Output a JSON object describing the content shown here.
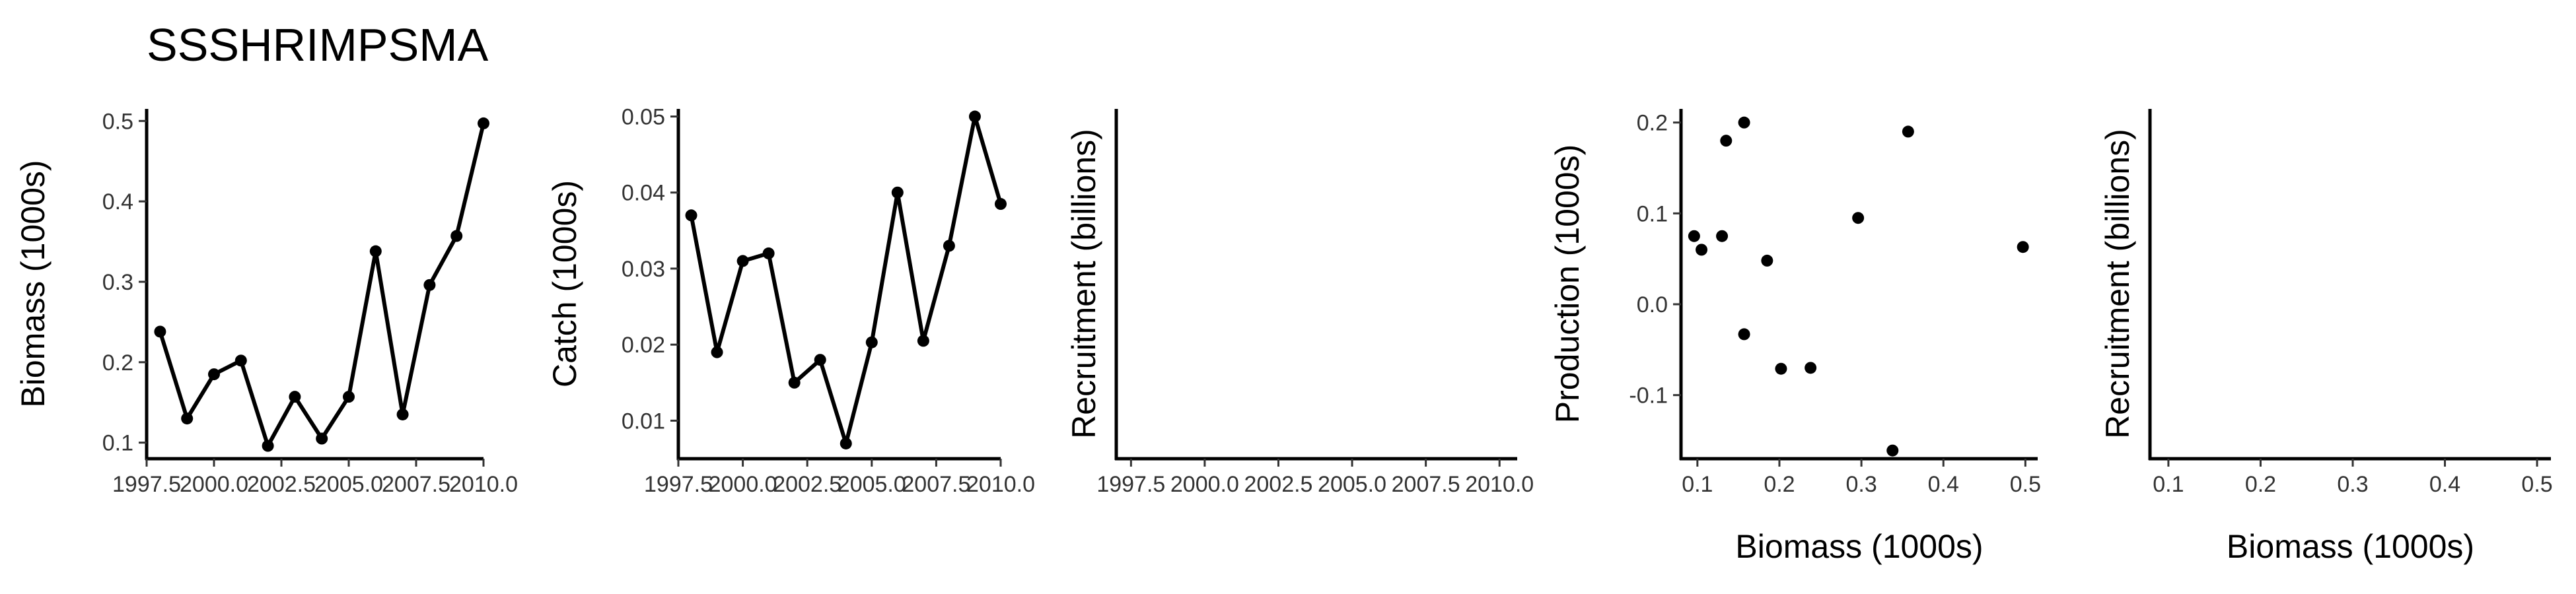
{
  "title": "SSSHRIMPSMA",
  "chart_data": [
    {
      "type": "line",
      "xlabel": "",
      "ylabel": "Biomass (1000s)",
      "xlim": [
        1997.5,
        2010.0
      ],
      "ylim": [
        0.08,
        0.515
      ],
      "xticks": [
        1997.5,
        2000.0,
        2002.5,
        2005.0,
        2007.5,
        2010.0
      ],
      "xtick_labels": [
        "1997.5",
        "2000.0",
        "2002.5",
        "2005.0",
        "2007.5",
        "2010.0"
      ],
      "yticks": [
        0.1,
        0.2,
        0.3,
        0.4,
        0.5
      ],
      "ytick_labels": [
        "0.1",
        "0.2",
        "0.3",
        "0.4",
        "0.5"
      ],
      "x": [
        1998,
        1999,
        2000,
        2001,
        2002,
        2003,
        2004,
        2005,
        2006,
        2007,
        2008,
        2009,
        2010
      ],
      "y": [
        0.238,
        0.13,
        0.185,
        0.202,
        0.096,
        0.157,
        0.105,
        0.157,
        0.338,
        0.135,
        0.296,
        0.357,
        0.497
      ]
    },
    {
      "type": "line",
      "xlabel": "",
      "ylabel": "Catch (1000s)",
      "xlim": [
        1997.5,
        2010.0
      ],
      "ylim": [
        0.005,
        0.051
      ],
      "xticks": [
        1997.5,
        2000.0,
        2002.5,
        2005.0,
        2007.5,
        2010.0
      ],
      "xtick_labels": [
        "1997.5",
        "2000.0",
        "2002.5",
        "2005.0",
        "2007.5",
        "2010.0"
      ],
      "yticks": [
        0.01,
        0.02,
        0.03,
        0.04,
        0.05
      ],
      "ytick_labels": [
        "0.01",
        "0.02",
        "0.03",
        "0.04",
        "0.05"
      ],
      "x": [
        1998,
        1999,
        2000,
        2001,
        2002,
        2003,
        2004,
        2005,
        2006,
        2007,
        2008,
        2009,
        2010
      ],
      "y": [
        0.037,
        0.019,
        0.031,
        0.032,
        0.015,
        0.018,
        0.007,
        0.0203,
        0.04,
        0.0205,
        0.033,
        0.05,
        0.0385
      ]
    },
    {
      "type": "line",
      "xlabel": "",
      "ylabel": "Recruitment (billions)",
      "xlim": [
        1997.0,
        2010.6
      ],
      "xticks": [
        1997.5,
        2000.0,
        2002.5,
        2005.0,
        2007.5,
        2010.0
      ],
      "xtick_labels": [
        "1997.5",
        "2000.0",
        "2002.5",
        "2005.0",
        "2007.5",
        "2010.0"
      ],
      "yticks": [],
      "ytick_labels": [],
      "x": [],
      "y": []
    },
    {
      "type": "scatter",
      "xlabel": "Biomass (1000s)",
      "ylabel": "Production (1000s)",
      "xlim": [
        0.08,
        0.515
      ],
      "ylim": [
        -0.17,
        0.215
      ],
      "xticks": [
        0.1,
        0.2,
        0.3,
        0.4,
        0.5
      ],
      "xtick_labels": [
        "0.1",
        "0.2",
        "0.3",
        "0.4",
        "0.5"
      ],
      "yticks": [
        -0.1,
        0.0,
        0.1,
        0.2
      ],
      "ytick_labels": [
        "-0.1",
        "0.0",
        "0.1",
        "0.2"
      ],
      "x": [
        0.096,
        0.105,
        0.13,
        0.135,
        0.157,
        0.157,
        0.185,
        0.202,
        0.238,
        0.296,
        0.338,
        0.357,
        0.497
      ],
      "y": [
        0.075,
        0.06,
        0.075,
        0.18,
        0.2,
        -0.033,
        0.048,
        -0.071,
        -0.07,
        0.095,
        -0.161,
        0.19,
        0.063
      ]
    },
    {
      "type": "scatter",
      "xlabel": "Biomass (1000s)",
      "ylabel": "Recruitment (billions)",
      "xlim": [
        0.08,
        0.515
      ],
      "xticks": [
        0.1,
        0.2,
        0.3,
        0.4,
        0.5
      ],
      "xtick_labels": [
        "0.1",
        "0.2",
        "0.3",
        "0.4",
        "0.5"
      ],
      "yticks": [],
      "ytick_labels": [],
      "x": [],
      "y": []
    }
  ]
}
